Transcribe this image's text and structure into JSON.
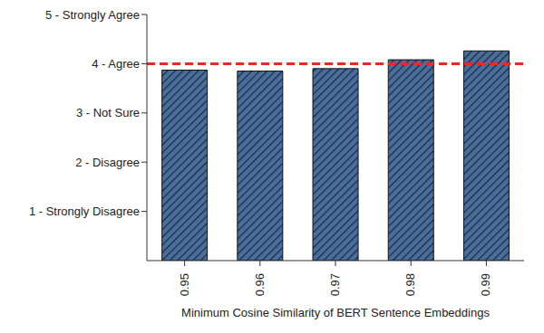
{
  "chart_data": {
    "type": "bar",
    "x_label": "Minimum Cosine Similarity of BERT Sentence Embeddings",
    "categories": [
      "0.95",
      "0.96",
      "0.97",
      "0.98",
      "0.99"
    ],
    "values": [
      3.87,
      3.85,
      3.9,
      4.08,
      4.26
    ],
    "color": "#4a6e9c",
    "ylim": [
      0,
      5
    ],
    "yticks": [
      {
        "value": 1,
        "label": "1 - Strongly Disagree"
      },
      {
        "value": 2,
        "label": "2 - Disagree"
      },
      {
        "value": 3,
        "label": "3 - Not Sure"
      },
      {
        "value": 4,
        "label": "4 - Agree"
      },
      {
        "value": 5,
        "label": "5 - Strongly Agree"
      }
    ],
    "grid": false,
    "reference_line": {
      "value": 4,
      "color": "#e8282b",
      "line_style": "dashed"
    }
  }
}
